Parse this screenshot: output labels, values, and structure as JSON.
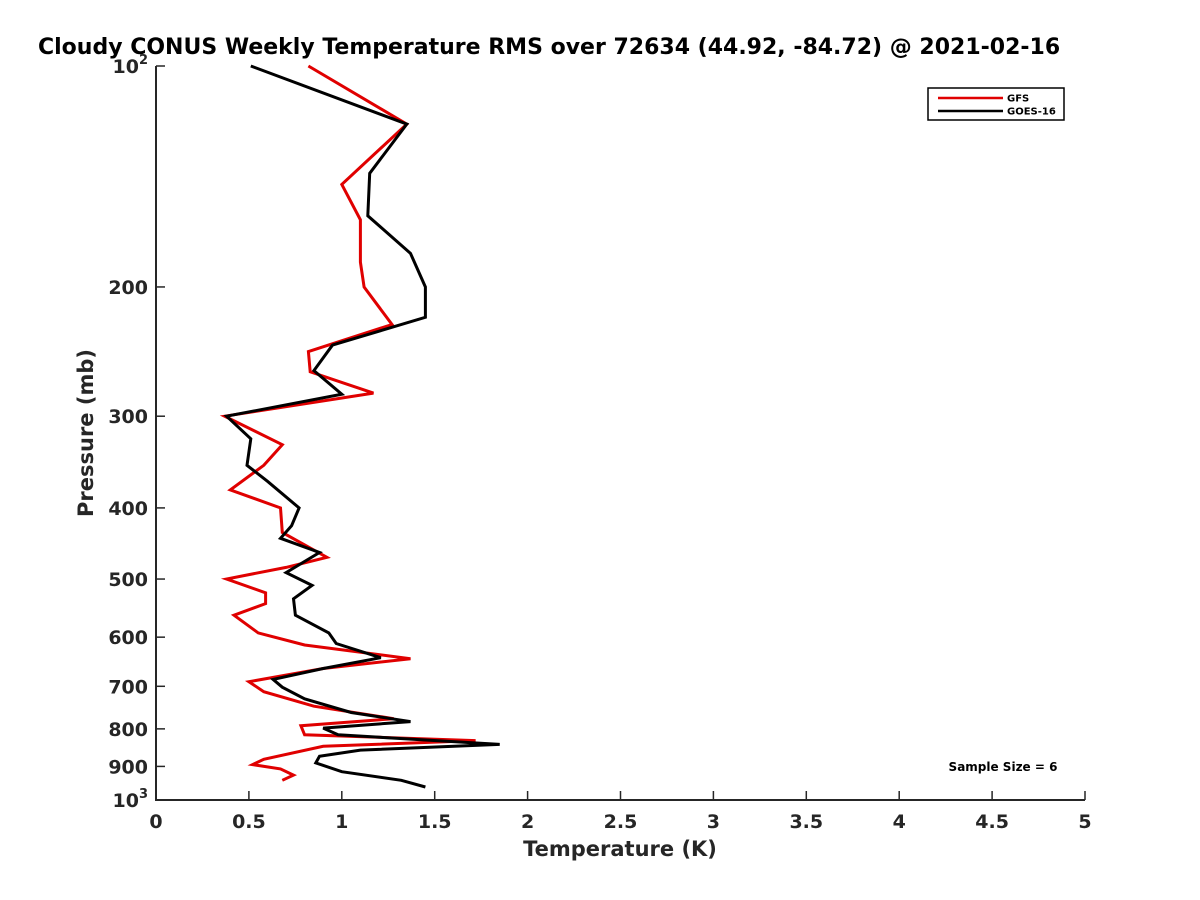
{
  "chart_data": {
    "type": "line",
    "title": "Cloudy CONUS Weekly Temperature RMS over 72634 (44.92, -84.72) @ 2021-02-16",
    "xlabel": "Temperature (K)",
    "ylabel": "Pressure (mb)",
    "xlim": [
      0,
      5
    ],
    "ylim": [
      100,
      1000
    ],
    "y_scale": "log",
    "y_reversed": true,
    "grid": false,
    "legend_position": "top-right",
    "x_ticks": [
      "0",
      "0.5",
      "1",
      "1.5",
      "2",
      "2.5",
      "3",
      "3.5",
      "4",
      "4.5",
      "5"
    ],
    "y_ticks": [
      {
        "value": 100,
        "base": "10",
        "exp": "2"
      },
      {
        "value": 200,
        "base": "200",
        "exp": ""
      },
      {
        "value": 300,
        "base": "300",
        "exp": ""
      },
      {
        "value": 400,
        "base": "400",
        "exp": ""
      },
      {
        "value": 500,
        "base": "500",
        "exp": ""
      },
      {
        "value": 600,
        "base": "600",
        "exp": ""
      },
      {
        "value": 700,
        "base": "700",
        "exp": ""
      },
      {
        "value": 800,
        "base": "800",
        "exp": ""
      },
      {
        "value": 900,
        "base": "900",
        "exp": ""
      },
      {
        "value": 1000,
        "base": "10",
        "exp": "3"
      }
    ],
    "annotation": "Sample Size = 6",
    "series": [
      {
        "name": "GFS",
        "color": "#e00000",
        "points": [
          [
            0.82,
            100
          ],
          [
            1.35,
            120
          ],
          [
            1.0,
            145
          ],
          [
            1.1,
            162
          ],
          [
            1.1,
            185
          ],
          [
            1.12,
            200
          ],
          [
            1.27,
            225
          ],
          [
            0.82,
            245
          ],
          [
            0.83,
            261
          ],
          [
            1.17,
            279
          ],
          [
            0.37,
            300
          ],
          [
            0.68,
            328
          ],
          [
            0.58,
            350
          ],
          [
            0.4,
            378
          ],
          [
            0.67,
            400
          ],
          [
            0.68,
            432
          ],
          [
            0.92,
            467
          ],
          [
            0.7,
            482
          ],
          [
            0.38,
            500
          ],
          [
            0.59,
            522
          ],
          [
            0.59,
            540
          ],
          [
            0.42,
            560
          ],
          [
            0.55,
            592
          ],
          [
            0.8,
            615
          ],
          [
            1.37,
            642
          ],
          [
            0.9,
            662
          ],
          [
            0.5,
            690
          ],
          [
            0.58,
            712
          ],
          [
            0.85,
            745
          ],
          [
            1.28,
            775
          ],
          [
            0.78,
            792
          ],
          [
            0.8,
            815
          ],
          [
            1.72,
            830
          ],
          [
            0.9,
            845
          ],
          [
            0.58,
            880
          ],
          [
            0.52,
            895
          ],
          [
            0.67,
            907
          ],
          [
            0.74,
            925
          ],
          [
            0.68,
            940
          ]
        ]
      },
      {
        "name": "GOES-16",
        "color": "#000000",
        "points": [
          [
            0.51,
            100
          ],
          [
            1.35,
            120
          ],
          [
            1.15,
            140
          ],
          [
            1.14,
            160
          ],
          [
            1.37,
            180
          ],
          [
            1.45,
            200
          ],
          [
            1.45,
            220
          ],
          [
            0.95,
            240
          ],
          [
            0.85,
            260
          ],
          [
            1.0,
            280
          ],
          [
            0.38,
            300
          ],
          [
            0.51,
            322
          ],
          [
            0.49,
            350
          ],
          [
            0.6,
            368
          ],
          [
            0.77,
            400
          ],
          [
            0.73,
            423
          ],
          [
            0.67,
            440
          ],
          [
            0.88,
            460
          ],
          [
            0.7,
            490
          ],
          [
            0.84,
            510
          ],
          [
            0.74,
            532
          ],
          [
            0.75,
            560
          ],
          [
            0.93,
            592
          ],
          [
            0.97,
            612
          ],
          [
            1.21,
            640
          ],
          [
            0.9,
            662
          ],
          [
            0.63,
            685
          ],
          [
            0.68,
            702
          ],
          [
            0.8,
            728
          ],
          [
            1.05,
            760
          ],
          [
            1.37,
            782
          ],
          [
            0.9,
            798
          ],
          [
            0.98,
            815
          ],
          [
            1.85,
            840
          ],
          [
            1.1,
            855
          ],
          [
            0.88,
            872
          ],
          [
            0.86,
            890
          ],
          [
            1.0,
            915
          ],
          [
            1.32,
            940
          ],
          [
            1.45,
            960
          ]
        ]
      }
    ]
  }
}
